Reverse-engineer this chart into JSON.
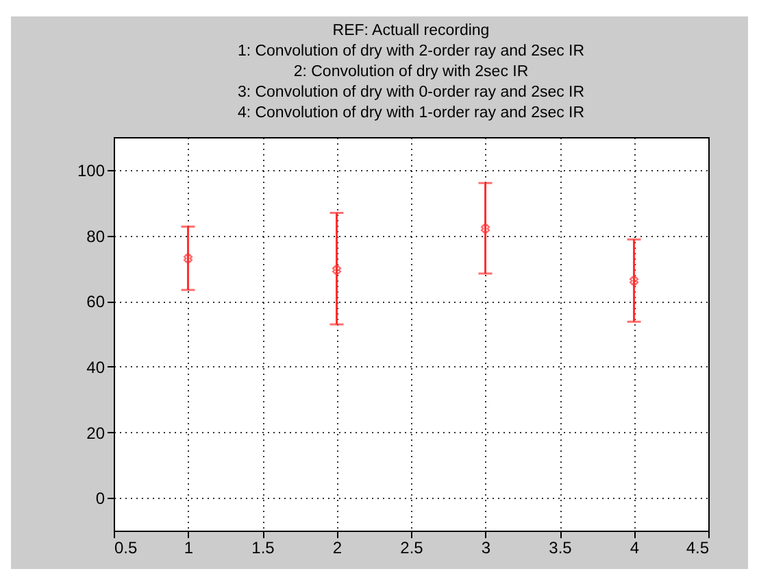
{
  "chart_data": {
    "type": "scatter",
    "title": "REF: Actuall recording\n1: Convolution of dry with 2-order ray and 2sec IR\n2: Convolution of dry with 2sec IR\n3: Convolution of dry with 0-order ray and 2sec IR\n4: Convolution of dry with 1-order ray and 2sec IR",
    "x": [
      1,
      2,
      3,
      4
    ],
    "series": [
      {
        "color": "#ff3030",
        "values": [
          73.0,
          69.5,
          82.1,
          66.2
        ],
        "errors": [
          [
            63.4,
            82.7
          ],
          [
            52.9,
            86.9
          ],
          [
            68.4,
            96.0
          ],
          [
            53.7,
            78.8
          ]
        ]
      }
    ],
    "xlim": [
      0.5,
      4.5
    ],
    "xticks": [
      0.5,
      1,
      1.5,
      2,
      2.5,
      3,
      3.5,
      4,
      4.5
    ],
    "ylim": [
      -10,
      110
    ],
    "yticks": [
      0,
      20,
      40,
      60,
      80,
      100
    ],
    "grid": true,
    "marker": "cross"
  }
}
